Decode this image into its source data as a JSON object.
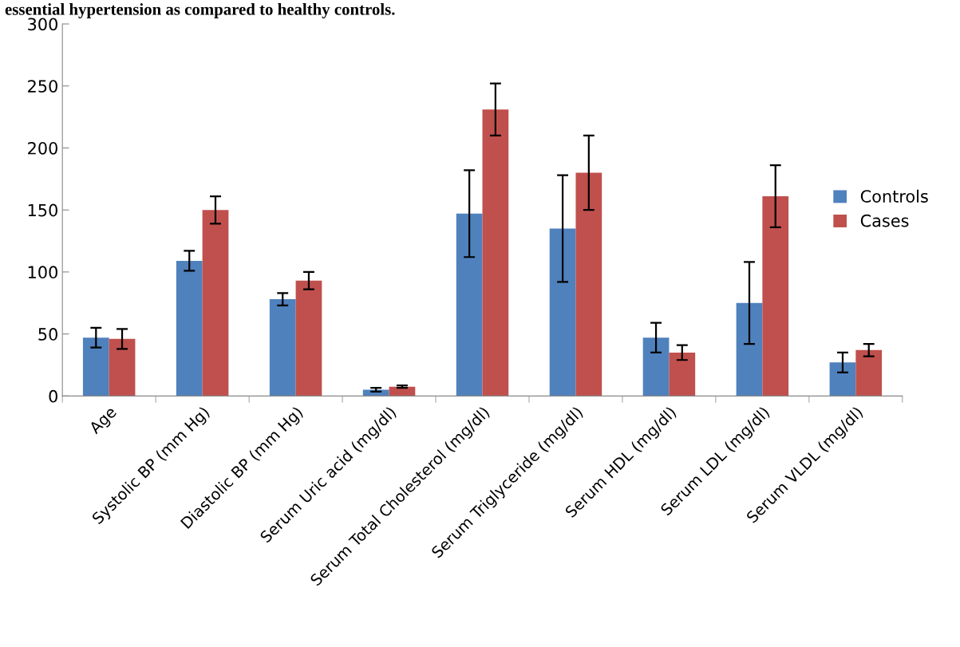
{
  "chart_data": {
    "type": "bar",
    "title": "essential hypertension as compared to healthy controls.",
    "categories": [
      "Age",
      "Systolic BP (mm Hg)",
      "Diastolic BP (mm Hg)",
      "Serum Uric acid (mg/dl)",
      "Serum Total Cholesterol (mg/dl)",
      "Serum Triglyceride (mg/dl)",
      "Serum HDL (mg/dl)",
      "Serum LDL (mg/dl)",
      "Serum VLDL (mg/dl)"
    ],
    "series": [
      {
        "name": "Controls",
        "color": "#4f81bd",
        "values": [
          47,
          109,
          78,
          5,
          147,
          135,
          47,
          75,
          27
        ],
        "errors": [
          8,
          8,
          5,
          1.5,
          35,
          43,
          12,
          33,
          8
        ]
      },
      {
        "name": "Cases",
        "color": "#c0504d",
        "values": [
          46,
          150,
          93,
          7.5,
          231,
          180,
          35,
          161,
          37
        ],
        "errors": [
          8,
          11,
          7,
          1,
          21,
          30,
          6,
          25,
          5
        ]
      }
    ],
    "ylim": [
      0,
      300
    ],
    "yticks": [
      0,
      50,
      100,
      150,
      200,
      250,
      300
    ],
    "grid": false,
    "legend": "right"
  }
}
